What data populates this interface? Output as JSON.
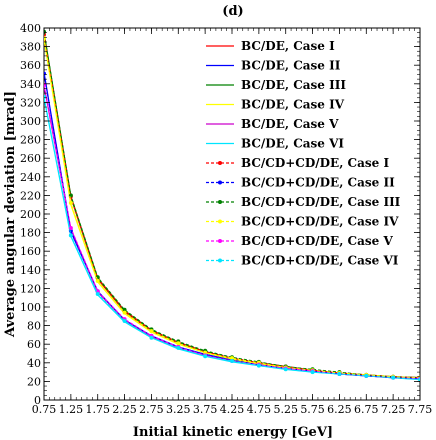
{
  "chart_data": {
    "type": "line",
    "panel_label": "(d)",
    "xlabel": "Initial kinetic energy [GeV]",
    "ylabel": "Average angular deviation [mrad]",
    "xlim": [
      0.75,
      7.75
    ],
    "ylim": [
      0,
      400
    ],
    "x_ticks": [
      "0.75",
      "1.25",
      "1.75",
      "2.25",
      "2.75",
      "3.25",
      "3.75",
      "4.25",
      "4.75",
      "5.25",
      "5.75",
      "6.25",
      "6.75",
      "7.25",
      "7.75"
    ],
    "y_ticks": [
      "0",
      "20",
      "40",
      "60",
      "80",
      "100",
      "120",
      "140",
      "160",
      "180",
      "200",
      "220",
      "240",
      "260",
      "280",
      "300",
      "320",
      "340",
      "360",
      "380",
      "400"
    ],
    "legend_position": "top-right",
    "x": [
      0.75,
      1.25,
      1.75,
      2.25,
      2.75,
      3.25,
      3.75,
      4.25,
      4.75,
      5.25,
      5.75,
      6.25,
      6.75,
      7.25,
      7.75
    ],
    "series": [
      {
        "name": "BC/DE, Case I",
        "color": "#ff0000",
        "style": "solid",
        "marker": false,
        "values": [
          393,
          218,
          130,
          95,
          74,
          61,
          51,
          45,
          40,
          36,
          32,
          29,
          27,
          25,
          24
        ]
      },
      {
        "name": "BC/DE, Case II",
        "color": "#0000ff",
        "style": "solid",
        "marker": false,
        "values": [
          352,
          181,
          117,
          86,
          69,
          57,
          49,
          43,
          38,
          34,
          31,
          28,
          26,
          24,
          23
        ]
      },
      {
        "name": "BC/DE, Case III",
        "color": "#008000",
        "style": "solid",
        "marker": false,
        "values": [
          395,
          219,
          131,
          96,
          75,
          62,
          52,
          45,
          40,
          36,
          32,
          29,
          27,
          25,
          24
        ]
      },
      {
        "name": "BC/DE, Case IV",
        "color": "#ffff00",
        "style": "solid",
        "marker": false,
        "values": [
          388,
          210,
          127,
          93,
          73,
          60,
          51,
          44,
          39,
          35,
          32,
          29,
          27,
          25,
          23
        ]
      },
      {
        "name": "BC/DE, Case V",
        "color": "#cc00cc",
        "style": "solid",
        "marker": false,
        "values": [
          338,
          184,
          116,
          86,
          68,
          56,
          48,
          42,
          37,
          34,
          31,
          28,
          26,
          24,
          23
        ]
      },
      {
        "name": "BC/DE, Case VI",
        "color": "#00e5ff",
        "style": "solid",
        "marker": false,
        "values": [
          325,
          176,
          113,
          84,
          67,
          55,
          47,
          41,
          37,
          33,
          30,
          28,
          26,
          24,
          22
        ]
      },
      {
        "name": "BC/CD+CD/DE, Case I",
        "color": "#ff0000",
        "style": "dashed",
        "marker": true,
        "values": [
          393,
          219,
          131,
          96,
          75,
          62,
          52,
          45,
          40,
          36,
          32,
          29,
          27,
          25,
          24
        ]
      },
      {
        "name": "BC/CD+CD/DE, Case II",
        "color": "#0000ff",
        "style": "dashed",
        "marker": true,
        "values": [
          351,
          182,
          117,
          86,
          69,
          57,
          49,
          43,
          38,
          34,
          31,
          28,
          26,
          24,
          23
        ]
      },
      {
        "name": "BC/CD+CD/DE, Case III",
        "color": "#008000",
        "style": "dashed",
        "marker": true,
        "values": [
          396,
          220,
          132,
          97,
          76,
          63,
          53,
          46,
          41,
          36,
          33,
          30,
          27,
          25,
          24
        ]
      },
      {
        "name": "BC/CD+CD/DE, Case IV",
        "color": "#ffff00",
        "style": "dashed",
        "marker": true,
        "values": [
          389,
          212,
          128,
          94,
          74,
          61,
          51,
          45,
          40,
          35,
          32,
          29,
          27,
          25,
          24
        ]
      },
      {
        "name": "BC/CD+CD/DE, Case V",
        "color": "#ff00ff",
        "style": "dashed",
        "marker": true,
        "values": [
          339,
          185,
          117,
          87,
          69,
          57,
          48,
          42,
          38,
          34,
          31,
          28,
          26,
          24,
          23
        ]
      },
      {
        "name": "BC/CD+CD/DE, Case VI",
        "color": "#00e5ff",
        "style": "dashed",
        "marker": true,
        "values": [
          326,
          177,
          114,
          85,
          67,
          56,
          47,
          42,
          37,
          33,
          30,
          28,
          26,
          24,
          22
        ]
      }
    ]
  }
}
